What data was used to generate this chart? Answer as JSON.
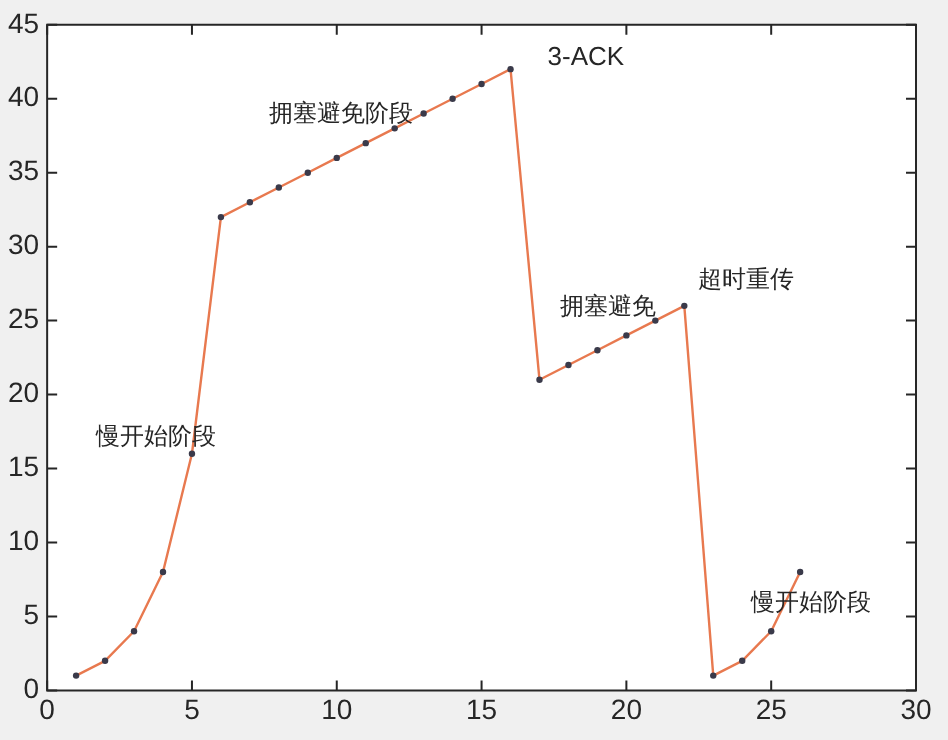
{
  "chart_data": {
    "type": "line",
    "x": [
      1,
      2,
      3,
      4,
      5,
      6,
      7,
      8,
      9,
      10,
      11,
      12,
      13,
      14,
      15,
      16,
      17,
      18,
      19,
      20,
      21,
      22,
      23,
      24,
      25,
      26
    ],
    "series": [
      {
        "color": "#e8794f",
        "values": [
          1,
          2,
          4,
          8,
          16,
          32,
          33,
          34,
          35,
          36,
          37,
          38,
          39,
          40,
          41,
          42,
          21,
          22,
          23,
          24,
          25,
          26,
          1,
          2,
          4,
          8
        ]
      }
    ],
    "xlim": [
      0,
      30
    ],
    "xticks": [
      0,
      5,
      10,
      15,
      20,
      25,
      30
    ],
    "ylim": [
      0,
      45
    ],
    "yticks": [
      0,
      5,
      10,
      15,
      20,
      25,
      30,
      35,
      40,
      45
    ],
    "grid": false,
    "legend": false,
    "marker": "circle",
    "line_style": "solid",
    "annotations": [
      "3-ACK",
      "拥塞避免阶段",
      "超时重传",
      "拥塞避免",
      "慢开始阶段",
      "慢开始阶段"
    ]
  }
}
